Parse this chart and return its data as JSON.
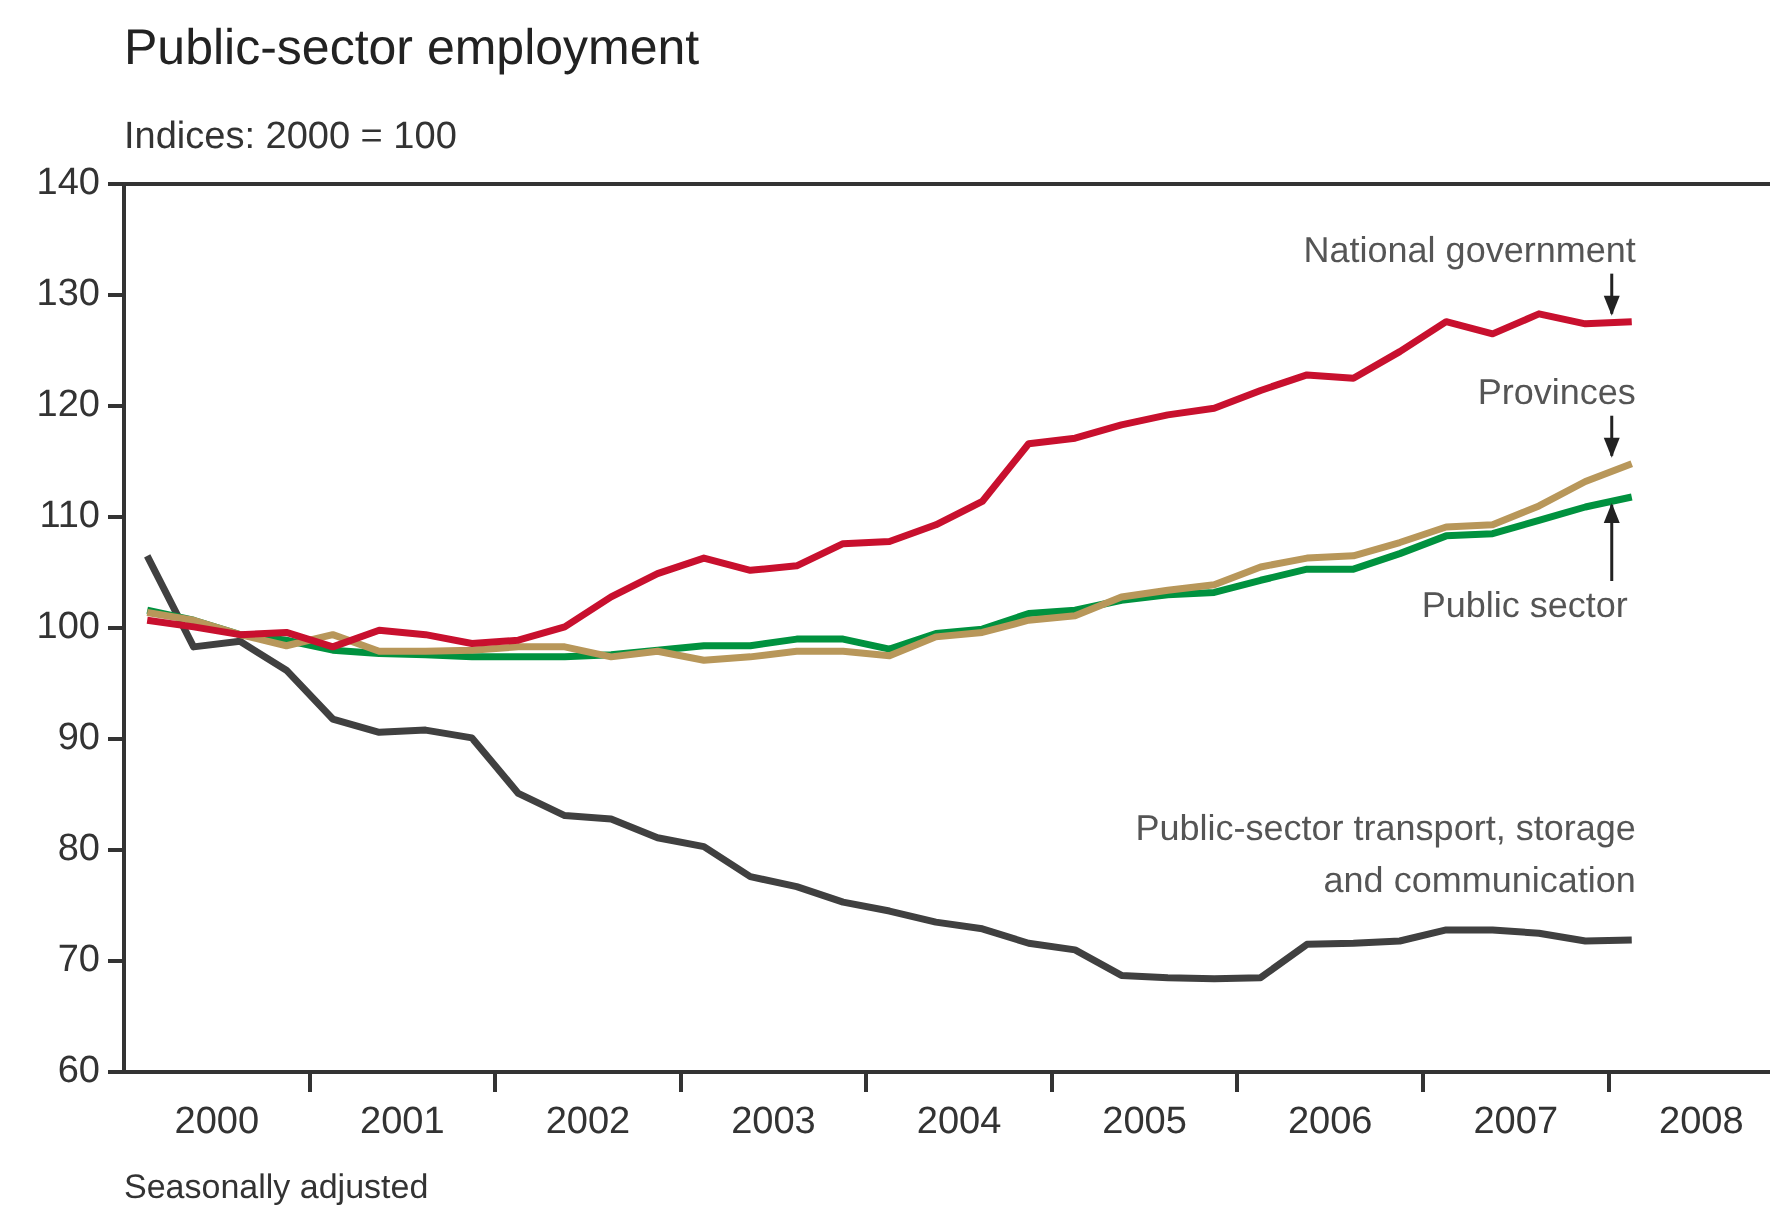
{
  "chart_data": {
    "type": "line",
    "title": "Public-sector employment",
    "subtitle": "Indices: 2000 = 100",
    "annotations": [
      "Seasonally adjusted"
    ],
    "x": [
      2000.125,
      2000.375,
      2000.625,
      2000.875,
      2001.125,
      2001.375,
      2001.625,
      2001.875,
      2002.125,
      2002.375,
      2002.625,
      2002.875,
      2003.125,
      2003.375,
      2003.625,
      2003.875,
      2004.125,
      2004.375,
      2004.625,
      2004.875,
      2005.125,
      2005.375,
      2005.625,
      2005.875,
      2006.125,
      2006.375,
      2006.625,
      2006.875,
      2007.125,
      2007.375,
      2007.625,
      2007.875,
      2008.125
    ],
    "series": [
      {
        "name": "National government",
        "color": "#c8102e",
        "values": [
          100.7,
          100.1,
          99.4,
          99.6,
          98.3,
          99.8,
          99.4,
          98.6,
          98.9,
          100.1,
          102.8,
          104.9,
          106.3,
          105.2,
          105.6,
          107.6,
          107.8,
          109.3,
          111.4,
          116.6,
          117.1,
          118.3,
          119.2,
          119.8,
          121.4,
          122.8,
          122.5,
          124.9,
          127.6,
          126.5,
          128.3,
          127.4,
          127.6
        ]
      },
      {
        "name": "Provinces",
        "color": "#b8975a",
        "values": [
          101.4,
          100.7,
          99.4,
          98.4,
          99.4,
          97.9,
          97.9,
          98.0,
          98.3,
          98.3,
          97.4,
          97.9,
          97.1,
          97.4,
          97.9,
          97.9,
          97.5,
          99.2,
          99.6,
          100.7,
          101.1,
          102.8,
          103.4,
          103.9,
          105.5,
          106.3,
          106.5,
          107.7,
          109.1,
          109.3,
          111.0,
          113.2,
          114.8
        ]
      },
      {
        "name": "Public sector",
        "color": "#00923f",
        "values": [
          101.6,
          100.7,
          99.4,
          98.9,
          98.0,
          97.7,
          97.6,
          97.4,
          97.4,
          97.4,
          97.6,
          98.0,
          98.4,
          98.4,
          99.0,
          99.0,
          98.1,
          99.5,
          99.9,
          101.3,
          101.6,
          102.5,
          103.0,
          103.2,
          104.3,
          105.3,
          105.3,
          106.7,
          108.3,
          108.5,
          109.7,
          110.9,
          111.8
        ]
      },
      {
        "name": "Public-sector transport, storage and communication",
        "color": "#404040",
        "values": [
          106.5,
          98.3,
          98.8,
          96.2,
          91.8,
          90.6,
          90.8,
          90.1,
          85.1,
          83.1,
          82.8,
          81.1,
          80.3,
          77.6,
          76.7,
          75.3,
          74.5,
          73.5,
          72.9,
          71.6,
          71.0,
          68.7,
          68.5,
          68.4,
          68.5,
          71.5,
          71.6,
          71.8,
          72.8,
          72.8,
          72.5,
          71.8,
          71.9
        ]
      }
    ],
    "xlim": [
      2000,
      2008.87
    ],
    "xticks": [
      {
        "value": 2000.5,
        "label": "2000"
      },
      {
        "value": 2001,
        "label": null
      },
      {
        "value": 2001.5,
        "label": "2001"
      },
      {
        "value": 2002,
        "label": null
      },
      {
        "value": 2002.5,
        "label": "2002"
      },
      {
        "value": 2003,
        "label": null
      },
      {
        "value": 2003.5,
        "label": "2003"
      },
      {
        "value": 2004,
        "label": null
      },
      {
        "value": 2004.5,
        "label": "2004"
      },
      {
        "value": 2005,
        "label": null
      },
      {
        "value": 2005.5,
        "label": "2005"
      },
      {
        "value": 2006,
        "label": null
      },
      {
        "value": 2006.5,
        "label": "2006"
      },
      {
        "value": 2007,
        "label": null
      },
      {
        "value": 2007.5,
        "label": "2007"
      },
      {
        "value": 2008,
        "label": null
      },
      {
        "value": 2008.5,
        "label": "2008"
      }
    ],
    "ylim": [
      60,
      140
    ],
    "yticks": [
      60,
      70,
      80,
      90,
      100,
      110,
      120,
      130,
      140
    ],
    "grid": false,
    "legend": false,
    "marker": "none",
    "line_style": "solid"
  }
}
